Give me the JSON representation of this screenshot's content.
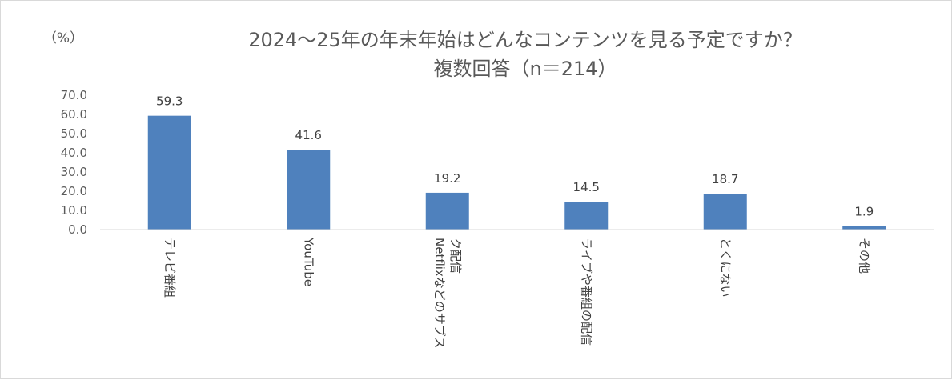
{
  "chart_data": {
    "type": "bar",
    "title_line1": "2024～25年の年末年始はどんなコンテンツを見る予定ですか？",
    "title_line2": "複数回答（n＝214）",
    "ylabel": "（%）",
    "ylim": [
      0,
      70
    ],
    "yticks": [
      "0.0",
      "10.0",
      "20.0",
      "30.0",
      "40.0",
      "50.0",
      "60.0",
      "70.0"
    ],
    "grid": false,
    "categories": [
      "テレビ番組",
      "YouTube",
      "Netflixなどのサブスク配信",
      "ライブや番組の配信",
      "とくにない",
      "その他"
    ],
    "category_lines": [
      [
        "テレビ番組"
      ],
      [
        "YouTube"
      ],
      [
        "Netflixなどのサブス",
        "ク配信"
      ],
      [
        "ライブや番組の配信"
      ],
      [
        "とくにない"
      ],
      [
        "その他"
      ]
    ],
    "values": [
      59.3,
      41.6,
      19.2,
      14.5,
      18.7,
      1.9
    ],
    "value_labels": [
      "59.3",
      "41.6",
      "19.2",
      "14.5",
      "18.7",
      "1.9"
    ],
    "bar_color": "#4f81bd",
    "axis_color": "#d9d9d9"
  }
}
